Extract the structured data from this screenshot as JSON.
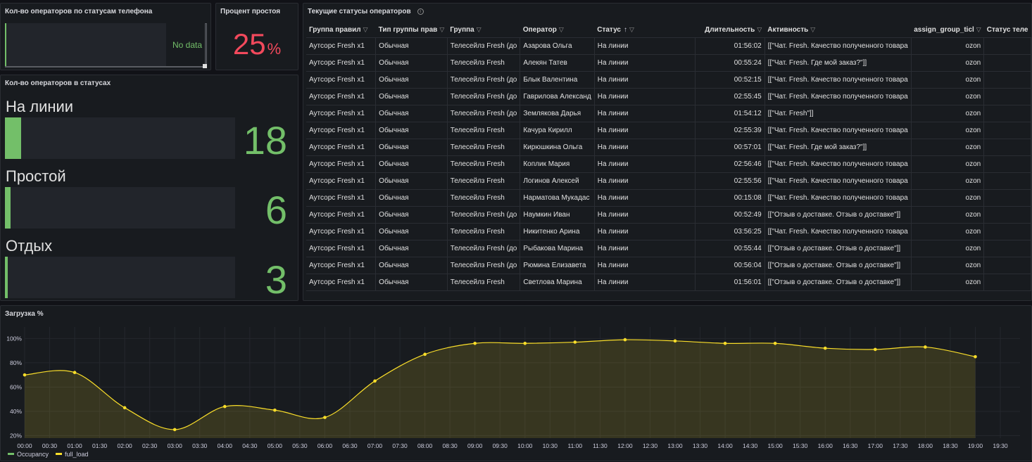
{
  "panels": {
    "phone_status": {
      "title": "Кол-во операторов по статусам телефона",
      "empty_text": "No data"
    },
    "idle_percent": {
      "title": "Процент простоя",
      "value": "25",
      "unit": "%",
      "color": "#f2495c"
    },
    "operators_in_status": {
      "title": "Кол-во операторов в статусах",
      "gauges": [
        {
          "label": "На линии",
          "value": "18",
          "fill_pct": 7
        },
        {
          "label": "Простой",
          "value": "6",
          "fill_pct": 2.5
        },
        {
          "label": "Отдых",
          "value": "3",
          "fill_pct": 1.2
        }
      ],
      "color": "#73bf69"
    },
    "current_statuses": {
      "title": "Текущие статусы операторов",
      "info_icon": "info-icon",
      "columns": [
        "Группа правил",
        "Тип группы прав",
        "Группа",
        "Оператор",
        "Статус",
        "Длительность",
        "Активность",
        "assign_group_ticl",
        "Статус теле"
      ],
      "sort_icon": "↑",
      "rows": [
        [
          "Аутсорс Fresh x1",
          "Обычная",
          "Телесейлз Fresh (до",
          "Азарова Ольга",
          "На линии",
          "01:56:02",
          "[[\"Чат. Fresh. Качество полученного товара",
          "ozon"
        ],
        [
          "Аутсорс Fresh x1",
          "Обычная",
          "Телесейлз Fresh",
          "Алекян Татев",
          "На линии",
          "00:55:24",
          "[[\"Чат. Fresh. Где мой заказ?\"]]",
          "ozon"
        ],
        [
          "Аутсорс Fresh x1",
          "Обычная",
          "Телесейлз Fresh (до",
          "Блык Валентина",
          "На линии",
          "00:52:15",
          "[[\"Чат. Fresh. Качество полученного товара",
          "ozon"
        ],
        [
          "Аутсорс Fresh x1",
          "Обычная",
          "Телесейлз Fresh (до",
          "Гаврилова Александ",
          "На линии",
          "02:55:45",
          "[[\"Чат. Fresh. Качество полученного товара",
          "ozon"
        ],
        [
          "Аутсорс Fresh x1",
          "Обычная",
          "Телесейлз Fresh (до",
          "Землякова Дарья",
          "На линии",
          "01:54:12",
          "[[\"Чат. Fresh\"]]",
          "ozon"
        ],
        [
          "Аутсорс Fresh x1",
          "Обычная",
          "Телесейлз Fresh",
          "Качура Кирилл",
          "На линии",
          "02:55:39",
          "[[\"Чат. Fresh. Качество полученного товара",
          "ozon"
        ],
        [
          "Аутсорс Fresh x1",
          "Обычная",
          "Телесейлз Fresh",
          "Кирюшкина Ольга",
          "На линии",
          "00:57:01",
          "[[\"Чат. Fresh. Где мой заказ?\"]]",
          "ozon"
        ],
        [
          "Аутсорс Fresh x1",
          "Обычная",
          "Телесейлз Fresh",
          "Коплик Мария",
          "На линии",
          "02:56:46",
          "[[\"Чат. Fresh. Качество полученного товара",
          "ozon"
        ],
        [
          "Аутсорс Fresh x1",
          "Обычная",
          "Телесейлз Fresh",
          "Логинов Алексей",
          "На линии",
          "02:55:56",
          "[[\"Чат. Fresh. Качество полученного товара",
          "ozon"
        ],
        [
          "Аутсорс Fresh x1",
          "Обычная",
          "Телесейлз Fresh",
          "Нарматова Мукадас",
          "На линии",
          "00:15:08",
          "[[\"Чат. Fresh. Качество полученного товара",
          "ozon"
        ],
        [
          "Аутсорс Fresh x1",
          "Обычная",
          "Телесейлз Fresh (до",
          "Наумкин Иван",
          "На линии",
          "00:52:49",
          "[[\"Отзыв о доставке. Отзыв о доставке\"]]",
          "ozon"
        ],
        [
          "Аутсорс Fresh x1",
          "Обычная",
          "Телесейлз Fresh",
          "Никитенко Арина",
          "На линии",
          "03:56:25",
          "[[\"Чат. Fresh. Качество полученного товара",
          "ozon"
        ],
        [
          "Аутсорс Fresh x1",
          "Обычная",
          "Телесейлз Fresh (до",
          "Рыбакова Марина",
          "На линии",
          "00:55:44",
          "[[\"Отзыв о доставке. Отзыв о доставке\"]]",
          "ozon"
        ],
        [
          "Аутсорс Fresh x1",
          "Обычная",
          "Телесейлз Fresh (до",
          "Рюмина Елизавета",
          "На линии",
          "00:56:04",
          "[[\"Отзыв о доставке. Отзыв о доставке\"]]",
          "ozon"
        ],
        [
          "Аутсорс Fresh x1",
          "Обычная",
          "Телесейлз Fresh",
          "Светлова Марина",
          "На линии",
          "01:56:01",
          "[[\"Отзыв о доставке. Отзыв о доставке\"]]",
          "ozon"
        ]
      ]
    },
    "load": {
      "title": "Загрузка %"
    }
  },
  "chart_data": {
    "type": "area",
    "title": "Загрузка %",
    "x_ticks": [
      "00:00",
      "00:30",
      "01:00",
      "01:30",
      "02:00",
      "02:30",
      "03:00",
      "03:30",
      "04:00",
      "04:30",
      "05:00",
      "05:30",
      "06:00",
      "06:30",
      "07:00",
      "07:30",
      "08:00",
      "08:30",
      "09:00",
      "09:30",
      "10:00",
      "10:30",
      "11:00",
      "11:30",
      "12:00",
      "12:30",
      "13:00",
      "13:30",
      "14:00",
      "14:30",
      "15:00",
      "15:30",
      "16:00",
      "16:30",
      "17:00",
      "17:30",
      "18:00",
      "18:30",
      "19:00",
      "19:30"
    ],
    "y_ticks": [
      "20%",
      "40%",
      "60%",
      "80%",
      "100%"
    ],
    "ylim": [
      18,
      106
    ],
    "series": [
      {
        "name": "Occupancy",
        "color": "#73bf69",
        "x": [],
        "values": []
      },
      {
        "name": "full_load",
        "color": "#fade2a",
        "x": [
          "00:00",
          "01:00",
          "02:00",
          "03:00",
          "04:00",
          "05:00",
          "06:00",
          "07:00",
          "08:00",
          "09:00",
          "10:00",
          "11:00",
          "12:00",
          "13:00",
          "14:00",
          "15:00",
          "16:00",
          "17:00",
          "18:00",
          "19:00"
        ],
        "values": [
          70,
          72,
          43,
          25,
          44,
          41,
          35,
          65,
          87,
          96,
          96,
          97,
          99,
          98,
          96,
          96,
          92,
          91,
          93,
          85
        ]
      }
    ],
    "legend": "bottom-left",
    "grid": true
  }
}
